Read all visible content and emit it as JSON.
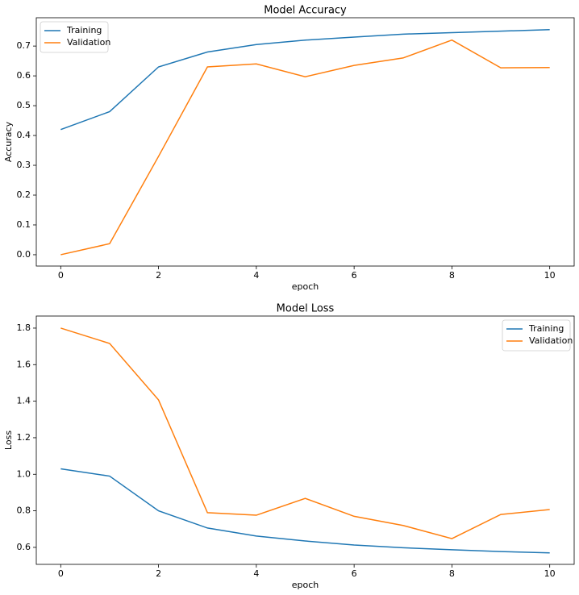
{
  "chart_data": [
    {
      "type": "line",
      "title": "Model Accuracy",
      "xlabel": "epoch",
      "ylabel": "Accuracy",
      "x": [
        0,
        1,
        2,
        3,
        4,
        5,
        6,
        7,
        8,
        9,
        10
      ],
      "series": [
        {
          "name": "Training",
          "color": "#1f77b4",
          "values": [
            0.42,
            0.48,
            0.63,
            0.68,
            0.705,
            0.72,
            0.73,
            0.74,
            0.745,
            0.75,
            0.755
          ]
        },
        {
          "name": "Validation",
          "color": "#ff7f0e",
          "values": [
            0.0,
            0.037,
            0.33,
            0.63,
            0.64,
            0.597,
            0.635,
            0.66,
            0.72,
            0.627,
            0.628
          ]
        }
      ],
      "xlim": [
        -0.5,
        10.5
      ],
      "ylim": [
        -0.038,
        0.795
      ],
      "xticks": [
        0,
        2,
        4,
        6,
        8,
        10
      ],
      "yticks": [
        {
          "value": 0,
          "label": "0.0"
        },
        0.1,
        0.2,
        0.3,
        0.4,
        0.5,
        0.6,
        0.7
      ],
      "legend": "upper left"
    },
    {
      "type": "line",
      "title": "Model Loss",
      "xlabel": "epoch",
      "ylabel": "Loss",
      "x": [
        0,
        1,
        2,
        3,
        4,
        5,
        6,
        7,
        8,
        9,
        10
      ],
      "series": [
        {
          "name": "Training",
          "color": "#1f77b4",
          "values": [
            1.03,
            0.99,
            0.8,
            0.706,
            0.662,
            0.635,
            0.613,
            0.598,
            0.587,
            0.577,
            0.57
          ]
        },
        {
          "name": "Validation",
          "color": "#ff7f0e",
          "values": [
            1.8,
            1.716,
            1.407,
            0.79,
            0.776,
            0.868,
            0.77,
            0.72,
            0.648,
            0.78,
            0.807
          ]
        }
      ],
      "xlim": [
        -0.5,
        10.5
      ],
      "ylim": [
        0.507,
        1.866
      ],
      "xticks": [
        0,
        2,
        4,
        6,
        8,
        10
      ],
      "yticks": [
        {
          "value": 0.6,
          "label": "0.6"
        },
        {
          "value": 0.8,
          "label": "0.8"
        },
        {
          "value": 1,
          "label": "1.0"
        },
        1.2,
        1.4,
        1.6,
        1.8
      ],
      "legend": "upper right"
    }
  ]
}
